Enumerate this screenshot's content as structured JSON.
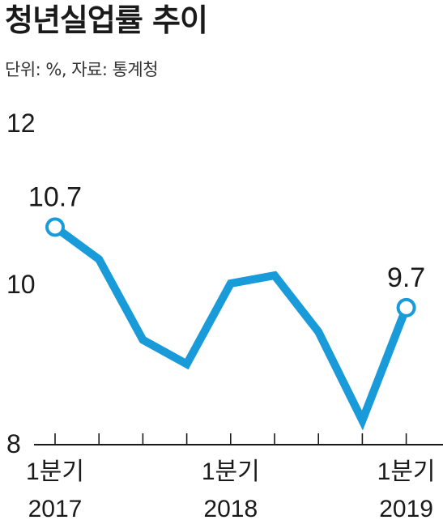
{
  "title": "청년실업률 추이",
  "subtitle": "단위: %, 자료: 통계청",
  "colors": {
    "line": "#1a9bd9",
    "axis": "#1a1a1a",
    "text": "#1a1a1a"
  },
  "chart_data": {
    "type": "line",
    "title": "청년실업률 추이",
    "subtitle": "단위: %, 자료: 통계청",
    "ylim": [
      8,
      12
    ],
    "yticks": [
      8,
      10,
      12
    ],
    "grid": false,
    "legend": "none",
    "x": [
      "2017 1분기",
      "2017 2분기",
      "2017 3분기",
      "2017 4분기",
      "2018 1분기",
      "2018 2분기",
      "2018 3분기",
      "2018 4분기",
      "2019 1분기"
    ],
    "xtick_labels": [
      {
        "index": 0,
        "quarter": "1분기",
        "year": "2017"
      },
      {
        "index": 4,
        "quarter": "1분기",
        "year": "2018"
      },
      {
        "index": 8,
        "quarter": "1분기",
        "year": "2019"
      }
    ],
    "series": [
      {
        "values": [
          10.7,
          10.3,
          9.3,
          9.0,
          10.0,
          10.1,
          9.4,
          8.3,
          9.7
        ]
      }
    ],
    "data_labels": [
      {
        "index": 0,
        "text": "10.7"
      },
      {
        "index": 8,
        "text": "9.7"
      }
    ]
  }
}
